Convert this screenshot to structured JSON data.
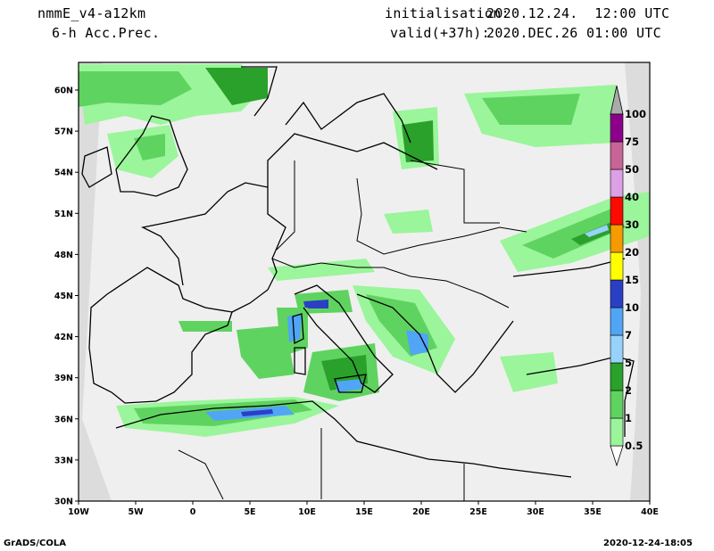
{
  "header": {
    "model": "nmmE_v4-a12km",
    "field": "6-h Acc.Prec.",
    "init_label": "initialisation:",
    "init_value": "2020.12.24.  12:00 UTC",
    "valid_label": "valid(+37h):",
    "valid_value": "2020.DEC.26 01:00 UTC"
  },
  "map": {
    "lat_ticks": [
      "60N",
      "57N",
      "54N",
      "51N",
      "48N",
      "45N",
      "42N",
      "39N",
      "36N",
      "33N",
      "30N"
    ],
    "lon_ticks": [
      "10W",
      "5W",
      "0",
      "5E",
      "10E",
      "15E",
      "20E",
      "25E",
      "30E",
      "35E",
      "40E"
    ],
    "land_color": "#efefef",
    "undefined_color": "#dcdcdc"
  },
  "legend": {
    "levels": [
      "0.5",
      "1",
      "2",
      "5",
      "7",
      "10",
      "15",
      "20",
      "30",
      "40",
      "50",
      "75",
      "100"
    ],
    "colors": [
      "#9bf59b",
      "#5fd35f",
      "#2aa12a",
      "#96d2fa",
      "#50a5f5",
      "#2b3fc4",
      "#ffff00",
      "#f59b00",
      "#fa0a00",
      "#dca0e6",
      "#c86496",
      "#8c008c"
    ],
    "cap_colors": {
      "low": "#ffffff",
      "high": "#aaaaaa"
    }
  },
  "footer": {
    "left": "GrADS/COLA",
    "right": "2020-12-24-18:05"
  }
}
